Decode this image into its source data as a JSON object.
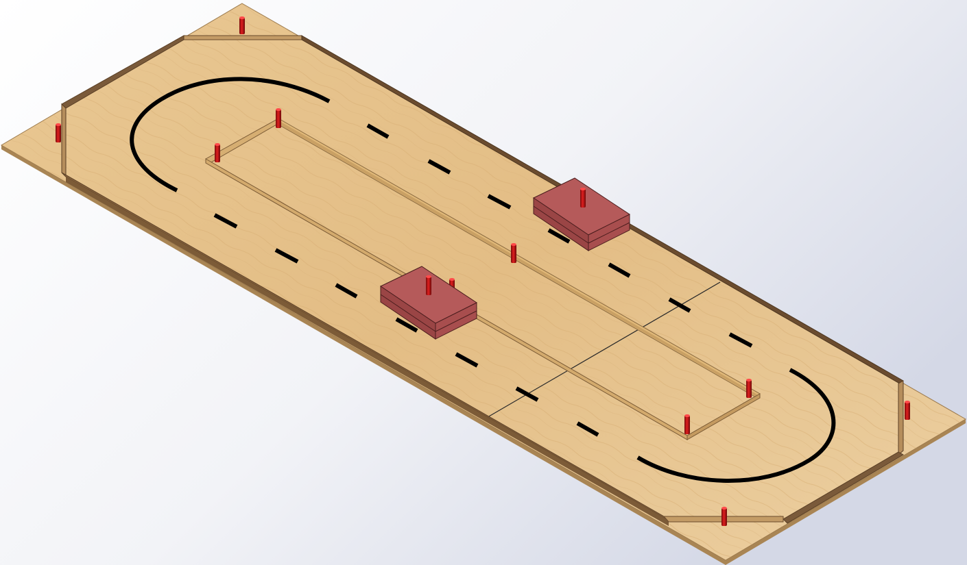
{
  "scene": {
    "background_top_right": "#d9dce8",
    "background_light": "#ffffff",
    "board_top_color": "#e7c38e",
    "board_edge_color": "#b8935f",
    "wall_color": "#c8a474",
    "wall_dark_color": "#6e5236",
    "track_line_color": "#000000",
    "island_rail_color": "#d9b377",
    "post_color": "#b3100f",
    "block_color": "#b05454",
    "block_side_color": "#8c3c3c"
  }
}
